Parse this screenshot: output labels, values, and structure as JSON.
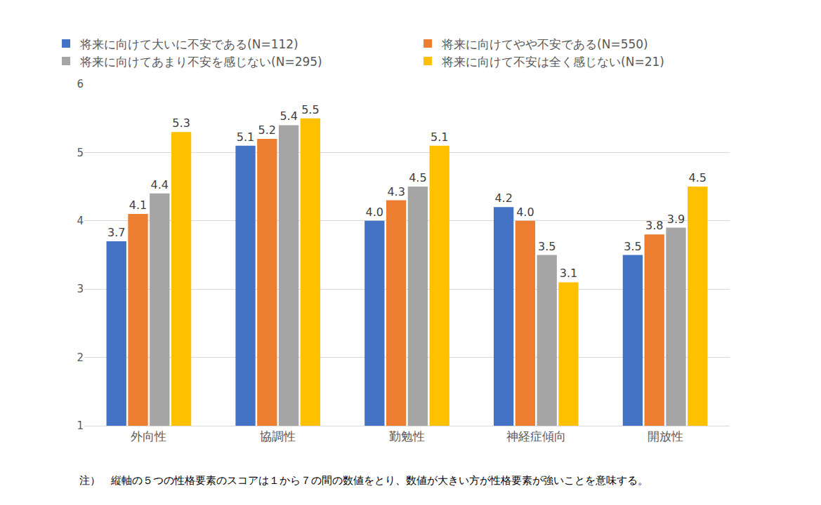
{
  "chart_data": {
    "type": "bar",
    "categories": [
      "外向性",
      "協調性",
      "勤勉性",
      "神経症傾向",
      "開放性"
    ],
    "series": [
      {
        "name": "将来に向けて大いに不安である(N=112)",
        "color": "#4472C4",
        "values": [
          3.7,
          5.1,
          4.0,
          4.2,
          3.5
        ],
        "value_labels": [
          "3.7",
          "5.1",
          "4.0",
          "4.2",
          "3.5"
        ]
      },
      {
        "name": "将来に向けてやや不安である(N=550)",
        "color": "#ED7D31",
        "values": [
          4.1,
          5.2,
          4.3,
          4.0,
          3.8
        ],
        "value_labels": [
          "4.1",
          "5.2",
          "4.3",
          "4.0",
          "3.8"
        ]
      },
      {
        "name": "将来に向けてあまり不安を感じない(N=295)",
        "color": "#A5A5A5",
        "values": [
          4.4,
          5.4,
          4.5,
          3.5,
          3.9
        ],
        "value_labels": [
          "4.4",
          "5.4",
          "4.5",
          "3.5",
          "3.9"
        ]
      },
      {
        "name": "将来に向けて不安は全く感じない(N=21)",
        "color": "#FFC000",
        "values": [
          5.3,
          5.5,
          5.1,
          3.1,
          4.5
        ],
        "value_labels": [
          "5.3",
          "5.5",
          "5.1",
          "3.1",
          "4.5"
        ]
      }
    ],
    "ylim": [
      1,
      6
    ],
    "yticks": [
      1,
      2,
      3,
      4,
      5,
      6
    ],
    "grid": true,
    "legend": "top",
    "data_labels": true,
    "annotations": [
      "注）　縦軸の５つの性格要素のスコアは１から７の間の数値をとり、数値が大きい方が性格要素が強いことを意味する。"
    ]
  }
}
